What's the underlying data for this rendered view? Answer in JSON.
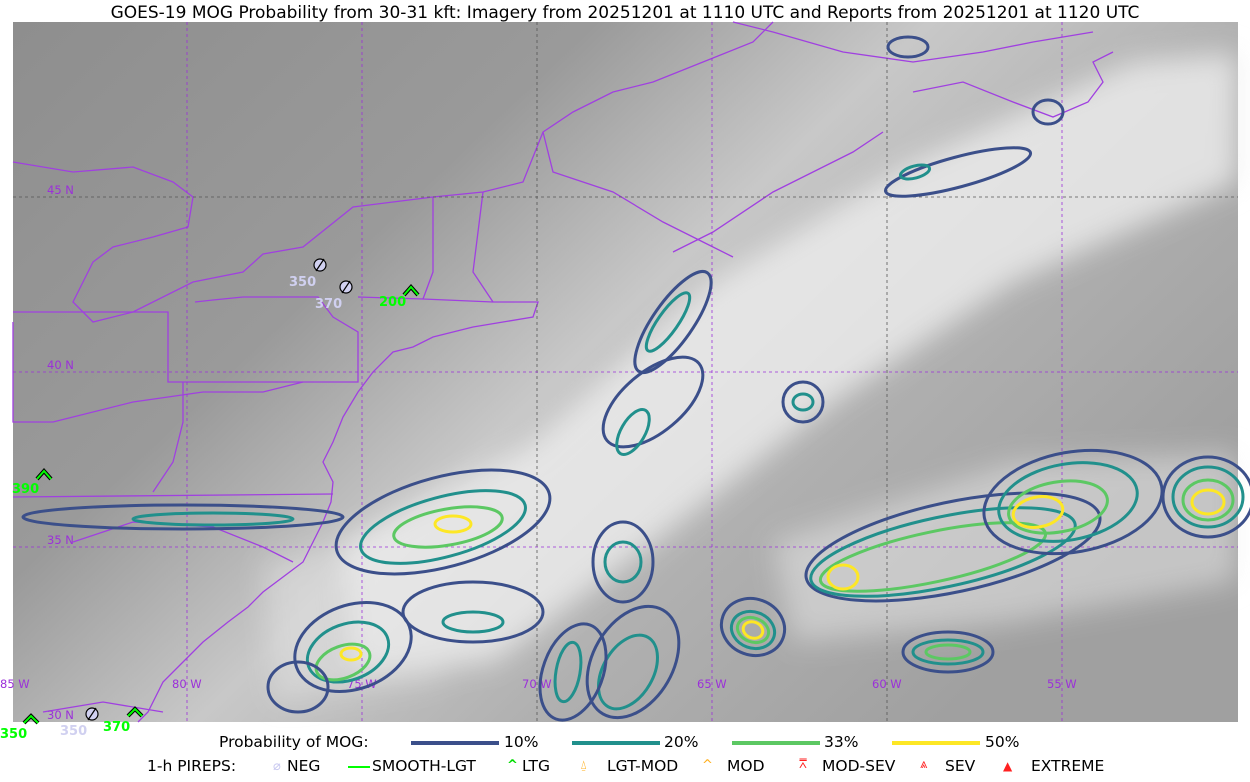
{
  "title": "GOES-19 MOG Probability from 30-31 kft: Imagery from 20251201 at 1110 UTC and Reports from 20251201 at 1120 UTC",
  "map": {
    "latitude_labels": [
      "45 N",
      "40 N",
      "35 N",
      "30 N"
    ],
    "longitude_labels": [
      "85 W",
      "80 W",
      "75 W",
      "70 W",
      "65 W",
      "60 W",
      "55 W"
    ],
    "border_color": "#a040e0",
    "pireps": [
      {
        "type": "NEG",
        "altitude": "350",
        "near": "western New York"
      },
      {
        "type": "NEG",
        "altitude": "370",
        "near": "central New York"
      },
      {
        "type": "LTG",
        "altitude": "200",
        "near": "eastern New York"
      },
      {
        "type": "LTG",
        "altitude": "390",
        "near": "Kentucky/Tennessee"
      },
      {
        "type": "LTG",
        "altitude": "350",
        "near": "Gulf coast"
      },
      {
        "type": "NEG",
        "altitude": "350",
        "near": "Gulf coast"
      },
      {
        "type": "LTG",
        "altitude": "370",
        "near": "Georgia"
      }
    ]
  },
  "legend": {
    "probability_label": "Probability of MOG:",
    "probability_levels": [
      {
        "label": "10%",
        "color": "#3b4f8a"
      },
      {
        "label": "20%",
        "color": "#21908c"
      },
      {
        "label": "33%",
        "color": "#5cc863"
      },
      {
        "label": "50%",
        "color": "#fde725"
      }
    ],
    "pireps_label": "1-h PIREPS:",
    "pirep_types": [
      {
        "label": "NEG",
        "icon": "neg-circle-slash-icon",
        "color": "#c8c8f0"
      },
      {
        "label": "SMOOTH-LGT",
        "icon": "line-icon",
        "color": "#00ff00"
      },
      {
        "label": "LTG",
        "icon": "caret-icon",
        "color": "#00ff00"
      },
      {
        "label": "LGT-MOD",
        "icon": "caret-bar-icon",
        "color": "#ffb020"
      },
      {
        "label": "MOD",
        "icon": "caret-icon",
        "color": "#ffb020"
      },
      {
        "label": "MOD-SEV",
        "icon": "double-caret-bar-icon",
        "color": "#ff2020"
      },
      {
        "label": "SEV",
        "icon": "double-caret-icon",
        "color": "#ff2020"
      },
      {
        "label": "EXTREME",
        "icon": "filled-triangle-icon",
        "color": "#ff2020"
      }
    ]
  }
}
